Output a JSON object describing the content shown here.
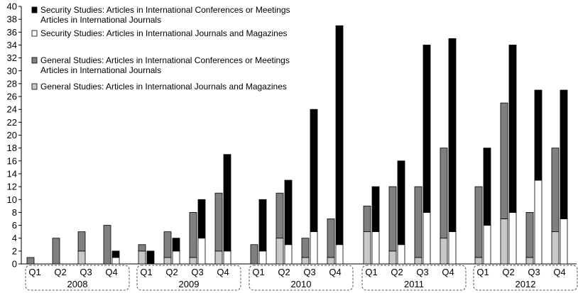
{
  "chart_data": {
    "type": "bar",
    "ylim": [
      0,
      40
    ],
    "ytick_step": 2,
    "grid": false,
    "legend_position": "top-left",
    "years": [
      "2008",
      "2009",
      "2010",
      "2011",
      "2012"
    ],
    "quarters": [
      "Q1",
      "Q2",
      "Q3",
      "Q4"
    ],
    "legend": [
      {
        "lines": [
          "Security Studies: Articles in International Conferences or Meetings",
          "Articles in International Journals"
        ],
        "color": "#000000"
      },
      {
        "lines": [
          "Security Studies: Articles in International Journals and Magazines"
        ],
        "color": "#ffffff"
      },
      {
        "lines": [
          "General Studies:  Articles in International Conferences or Meetings",
          "Articles in International Journals"
        ],
        "color": "#808080"
      },
      {
        "lines": [
          "General Studies: Articles in International Journals and Magazines"
        ],
        "color": "#c8c8c8"
      }
    ],
    "series": [
      {
        "stack": "general",
        "part": "journals_magazines",
        "color": "#c8c8c8",
        "values": [
          0,
          0,
          2,
          0,
          2,
          1,
          1,
          2,
          0,
          4,
          1,
          1,
          5,
          2,
          1,
          4,
          1,
          7,
          1,
          5
        ]
      },
      {
        "stack": "general",
        "part": "conferences",
        "color": "#808080",
        "values": [
          1,
          4,
          3,
          6,
          1,
          4,
          7,
          9,
          3,
          7,
          3,
          6,
          4,
          10,
          11,
          14,
          11,
          18,
          7,
          13
        ]
      },
      {
        "stack": "security",
        "part": "journals_magazines",
        "color": "#ffffff",
        "values": [
          0,
          0,
          0,
          1,
          0,
          2,
          4,
          2,
          2,
          3,
          5,
          3,
          5,
          3,
          8,
          5,
          6,
          8,
          13,
          7
        ]
      },
      {
        "stack": "security",
        "part": "conferences",
        "color": "#000000",
        "values": [
          0,
          0,
          0,
          1,
          2,
          2,
          6,
          15,
          8,
          10,
          19,
          34,
          7,
          13,
          26,
          30,
          12,
          26,
          14,
          20
        ]
      }
    ]
  }
}
